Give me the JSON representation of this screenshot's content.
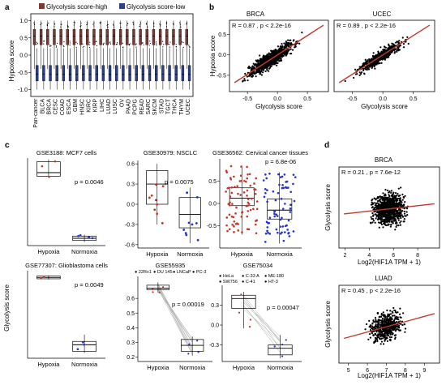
{
  "panel_letters": {
    "a": "a",
    "b": "b",
    "c": "c",
    "d": "d"
  },
  "colors": {
    "high": "#7a3b33",
    "low": "#2b3f8c",
    "red": "#c0392b",
    "blue": "#2233cc",
    "fit": "#c0392b",
    "dot": "#000000"
  },
  "chart_data": [
    {
      "id": "a",
      "type": "box",
      "ylabel": "Hypoxia score",
      "legend": [
        "Glycolysis score-high",
        "Glycolysis score-low"
      ],
      "categories": [
        "Pan-cancer",
        "BLCA",
        "BRCA",
        "CESC",
        "COAD",
        "ESCA",
        "GBM",
        "HNSC",
        "KIRC",
        "KIRP",
        "LIHC",
        "LUAD",
        "LUSC",
        "OV",
        "PAAD",
        "PCPG",
        "READ",
        "SARC",
        "SKCM",
        "STAD",
        "TGCT",
        "THCA",
        "THYM",
        "UCEC"
      ],
      "ylim": [
        -1.2,
        1.2
      ],
      "yticks": [
        1.0,
        0.5,
        0.0,
        -0.5,
        -1.0
      ],
      "yticklabels": [
        "1.0",
        "0.5",
        "0.0",
        "-0.5",
        "-1.0"
      ],
      "series": [
        {
          "name": "Glycolysis score-high",
          "median": 0.55,
          "q1": 0.3,
          "q3": 0.75,
          "lo": -0.4,
          "hi": 1.0
        },
        {
          "name": "Glycolysis score-low",
          "median": -0.55,
          "q1": -0.75,
          "q3": -0.3,
          "lo": -1.0,
          "hi": 0.2
        }
      ]
    },
    {
      "id": "b1",
      "type": "scatter",
      "title": "BRCA",
      "stat": "R = 0.87 , p < 2.2e-16",
      "xlabel": "Glycolysis score",
      "ylabel": "Hypoxia score",
      "xlim": [
        -0.8,
        0.85
      ],
      "ylim": [
        -0.9,
        0.85
      ],
      "xticks": [
        -0.5,
        0.0,
        0.5
      ],
      "xticklabels": [
        "-0.5",
        "0.0",
        "0.5"
      ],
      "yticks": [
        -0.5,
        0.0,
        0.5
      ],
      "yticklabels": [
        "-0.5",
        "0.0",
        "0.5"
      ],
      "fit": {
        "slope": 0.95,
        "intercept": 0.0
      }
    },
    {
      "id": "b2",
      "type": "scatter",
      "title": "UCEC",
      "stat": "R = 0.89 , p < 2.2e-16",
      "xlabel": "Glycolysis score",
      "xlim": [
        -0.8,
        0.85
      ],
      "ylim": [
        -0.9,
        0.85
      ],
      "xticks": [
        -0.5,
        0.0,
        0.5
      ],
      "xticklabels": [
        "-0.5",
        "0.0",
        "0.5"
      ],
      "fit": {
        "slope": 0.95,
        "intercept": 0.0
      }
    },
    {
      "id": "c1",
      "type": "box",
      "title": "GSE3188: MCF7 cells",
      "pvalue": "p = 0.0046",
      "categories": [
        "Hypoxia",
        "Normoxia"
      ],
      "ylim": [
        -0.6,
        0.6
      ],
      "boxes": [
        {
          "median": 0.4,
          "q1": 0.35,
          "q3": 0.55,
          "lo": 0.33,
          "hi": 0.58
        },
        {
          "median": -0.5,
          "q1": -0.53,
          "q3": -0.47,
          "lo": -0.55,
          "hi": -0.45
        }
      ]
    },
    {
      "id": "c2",
      "type": "box",
      "title": "GSE30979: NSCLC",
      "pvalue": "p = 0.0075",
      "categories": [
        "Hypoxia",
        "Normoxia"
      ],
      "ylim": [
        -0.65,
        0.65
      ],
      "yticks": [
        0.6,
        0.3,
        0.0,
        -0.3,
        -0.6
      ],
      "yticklabels": [
        "0.6",
        "0.3",
        "0.0",
        "-0.3",
        "-0.6"
      ],
      "boxes": [
        {
          "median": 0.3,
          "q1": 0.0,
          "q3": 0.5,
          "lo": -0.3,
          "hi": 0.6
        },
        {
          "median": -0.15,
          "q1": -0.35,
          "q3": 0.1,
          "lo": -0.58,
          "hi": 0.25
        }
      ]
    },
    {
      "id": "c3",
      "type": "box",
      "title": "GSE36562: Cervical cancer tissues",
      "pvalue": "p = 6.8e-06",
      "categories": [
        "Hypoxia",
        "Normoxia"
      ],
      "ylim": [
        -1.0,
        1.0
      ],
      "yticks": [
        0.5,
        0.0,
        -0.5
      ],
      "yticklabels": [
        "0.5",
        "0.0",
        "-0.5"
      ],
      "boxes": [
        {
          "median": 0.12,
          "q1": -0.05,
          "q3": 0.35,
          "lo": -0.7,
          "hi": 0.85
        },
        {
          "median": -0.15,
          "q1": -0.35,
          "q3": 0.1,
          "lo": -0.9,
          "hi": 0.7
        }
      ]
    },
    {
      "id": "c4",
      "type": "box",
      "title": "GSE77307: Glioblastoma cells",
      "pvalue": "p = 0.0049",
      "ylabel": "Glycolysis score",
      "categories": [
        "Hypoxia",
        "Normoxia"
      ],
      "ylim": [
        -0.7,
        0.6
      ],
      "boxes": [
        {
          "median": 0.5,
          "q1": 0.48,
          "q3": 0.52,
          "lo": 0.47,
          "hi": 0.53
        },
        {
          "median": -0.5,
          "q1": -0.6,
          "q3": -0.45,
          "lo": -0.62,
          "hi": -0.35
        }
      ]
    },
    {
      "id": "c5",
      "type": "paired-box",
      "title": "GSE55935",
      "pvalue": "p = 0.00019",
      "legend": [
        "22Rv1",
        "DU 145",
        "LNCaP",
        "PC-3"
      ],
      "categories": [
        "Hypoxia",
        "Normoxia"
      ],
      "ylim": [
        0.17,
        0.75
      ],
      "yticks": [
        0.6,
        0.5,
        0.4,
        0.3,
        0.2
      ],
      "yticklabels": [
        "0.6",
        "0.5",
        "0.4",
        "0.3",
        "0.2"
      ],
      "boxes": [
        {
          "median": 0.67,
          "q1": 0.66,
          "q3": 0.69,
          "lo": 0.64,
          "hi": 0.71
        },
        {
          "median": 0.28,
          "q1": 0.24,
          "q3": 0.32,
          "lo": 0.21,
          "hi": 0.34
        }
      ]
    },
    {
      "id": "c6",
      "type": "paired-box",
      "title": "GSE75034",
      "pvalue": "p = 0.00047",
      "legend": [
        "HeLa",
        "C-33 A",
        "ME-180",
        "SW756",
        "C-41",
        "HT-3"
      ],
      "categories": [
        "Hypoxia",
        "Normoxia"
      ],
      "ylim": [
        -0.55,
        0.6
      ],
      "yticks": [
        0.3,
        0.0,
        -0.3
      ],
      "yticklabels": [
        "0.3",
        "0.0",
        "-0.3"
      ],
      "boxes": [
        {
          "median": 0.4,
          "q1": 0.25,
          "q3": 0.45,
          "lo": -0.05,
          "hi": 0.5
        },
        {
          "median": -0.35,
          "q1": -0.45,
          "q3": -0.3,
          "lo": -0.5,
          "hi": -0.15
        }
      ]
    },
    {
      "id": "d1",
      "type": "scatter",
      "title": "BRCA",
      "stat": "R = 0.21 , p = 7.6e-12",
      "xlabel": "Log2(HIF1A TPM + 1)",
      "ylabel": "Glycolysis score",
      "xlim": [
        1.5,
        9.8
      ],
      "ylim": [
        -0.9,
        0.9
      ],
      "xticks": [
        2,
        4,
        6,
        8
      ],
      "xticklabels": [
        "2",
        "4",
        "6",
        "8"
      ],
      "fit": {
        "slope": 0.03,
        "intercept": -0.2
      }
    },
    {
      "id": "d2",
      "type": "scatter",
      "title": "LUAD",
      "stat": "R = 0.45 , p < 2.2e-16",
      "xlabel": "Log2(HIF1A TPM + 1)",
      "ylabel": "Glycolysis score",
      "xlim": [
        4.5,
        9.8
      ],
      "ylim": [
        -0.9,
        0.9
      ],
      "xticks": [
        5,
        6,
        7,
        8,
        9
      ],
      "xticklabels": [
        "5",
        "6",
        "7",
        "8",
        "9"
      ],
      "fit": {
        "slope": 0.12,
        "intercept": -0.9
      }
    }
  ]
}
